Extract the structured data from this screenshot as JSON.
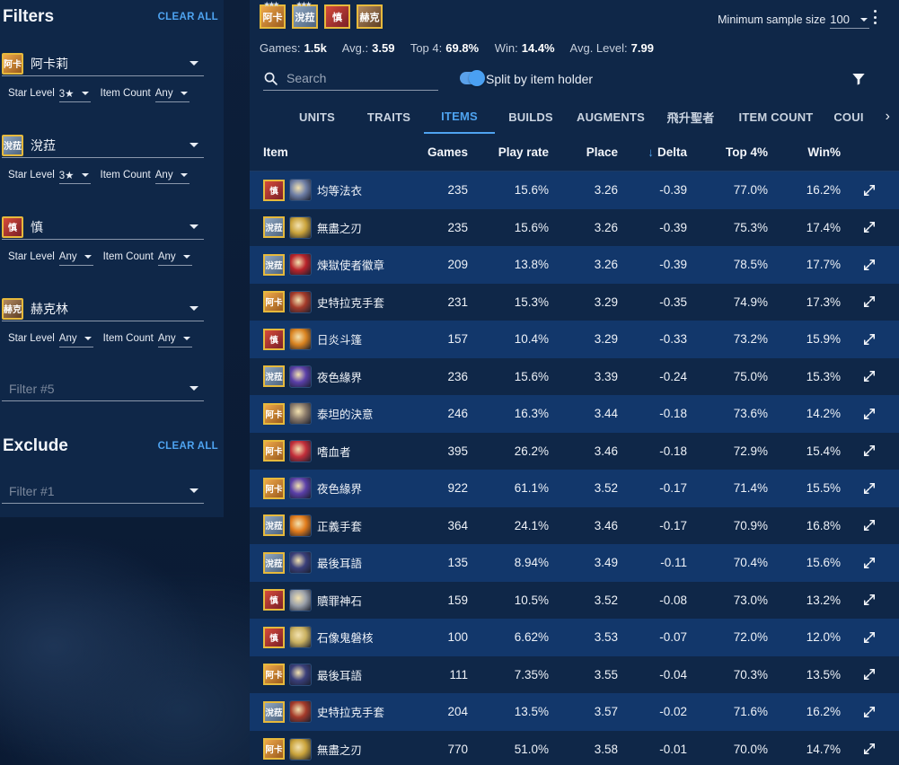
{
  "sidebar": {
    "filters_title": "Filters",
    "clear_all": "CLEAR ALL",
    "filters": [
      {
        "portrait_text": "阿卡",
        "portrait_color": "gold",
        "name": "阿卡莉",
        "star_label": "Star Level",
        "star_value": "3★",
        "count_label": "Item Count",
        "count_value": "Any"
      },
      {
        "portrait_text": "涗菈",
        "portrait_color": "blue",
        "name": "涗菈",
        "star_label": "Star Level",
        "star_value": "3★",
        "count_label": "Item Count",
        "count_value": "Any"
      },
      {
        "portrait_text": "慎",
        "portrait_color": "red",
        "name": "慎",
        "star_label": "Star Level",
        "star_value": "Any",
        "count_label": "Item Count",
        "count_value": "Any"
      },
      {
        "portrait_text": "赫克",
        "portrait_color": "brown",
        "name": "赫克林",
        "star_label": "Star Level",
        "star_value": "Any",
        "count_label": "Item Count",
        "count_value": "Any"
      }
    ],
    "filter5_placeholder": "Filter #5",
    "exclude_title": "Exclude",
    "exclude_clear_all": "CLEAR ALL",
    "exclude_placeholder": "Filter #1"
  },
  "header": {
    "portraits": [
      {
        "text": "阿卡",
        "color": "gold"
      },
      {
        "text": "涗菈",
        "color": "blue"
      },
      {
        "text": "慎",
        "color": "red"
      },
      {
        "text": "赫克",
        "color": "brown"
      }
    ],
    "min_sample_label": "Minimum sample size",
    "min_sample_value": "100",
    "stats": {
      "games_label": "Games:",
      "games": "1.5k",
      "avg_label": "Avg.:",
      "avg": "3.59",
      "top4_label": "Top 4:",
      "top4": "69.8%",
      "win_label": "Win:",
      "win": "14.4%",
      "avg_level_label": "Avg. Level:",
      "avg_level": "7.99"
    },
    "search_placeholder": "Search",
    "split_label": "Split by item holder",
    "split_on": true
  },
  "tabs": [
    "UNITS",
    "TRAITS",
    "ITEMS",
    "BUILDS",
    "AUGMENTS",
    "飛升聖者",
    "ITEM COUNT",
    "COUI"
  ],
  "active_tab": "ITEMS",
  "table": {
    "columns": [
      "Item",
      "Games",
      "Play rate",
      "Place",
      "Delta",
      "Top 4%",
      "Win%"
    ],
    "sorted_column": "Delta",
    "rows": [
      {
        "holder": "慎",
        "holder_color": "red",
        "item_color": "#6f7fa6",
        "item": "均等法衣",
        "games": "235",
        "play": "15.6%",
        "place": "3.26",
        "delta": "-0.39",
        "top4": "77.0%",
        "win": "16.2%"
      },
      {
        "holder": "涗菈",
        "holder_color": "blue",
        "item_color": "#c9a23a",
        "item": "無盡之刃",
        "games": "235",
        "play": "15.6%",
        "place": "3.26",
        "delta": "-0.39",
        "top4": "75.3%",
        "win": "17.4%"
      },
      {
        "holder": "涗菈",
        "holder_color": "blue",
        "item_color": "#b8232a",
        "item": "煉獄使者徽章",
        "games": "209",
        "play": "13.8%",
        "place": "3.26",
        "delta": "-0.39",
        "top4": "78.5%",
        "win": "17.7%"
      },
      {
        "holder": "阿卡",
        "holder_color": "gold",
        "item_color": "#a43a2a",
        "item": "史特拉克手套",
        "games": "231",
        "play": "15.3%",
        "place": "3.29",
        "delta": "-0.35",
        "top4": "74.9%",
        "win": "17.3%"
      },
      {
        "holder": "慎",
        "holder_color": "red",
        "item_color": "#d9821f",
        "item": "日炎斗篷",
        "games": "157",
        "play": "10.4%",
        "place": "3.29",
        "delta": "-0.33",
        "top4": "73.2%",
        "win": "15.9%"
      },
      {
        "holder": "涗菈",
        "holder_color": "blue",
        "item_color": "#5a3fa8",
        "item": "夜色緣界",
        "games": "236",
        "play": "15.6%",
        "place": "3.39",
        "delta": "-0.24",
        "top4": "75.0%",
        "win": "15.3%"
      },
      {
        "holder": "阿卡",
        "holder_color": "gold",
        "item_color": "#8a7a6a",
        "item": "泰坦的決意",
        "games": "246",
        "play": "16.3%",
        "place": "3.44",
        "delta": "-0.18",
        "top4": "73.6%",
        "win": "14.2%"
      },
      {
        "holder": "阿卡",
        "holder_color": "gold",
        "item_color": "#c22e3a",
        "item": "嗜血者",
        "games": "395",
        "play": "26.2%",
        "place": "3.46",
        "delta": "-0.18",
        "top4": "72.9%",
        "win": "15.4%"
      },
      {
        "holder": "阿卡",
        "holder_color": "gold",
        "item_color": "#5a3fa8",
        "item": "夜色緣界",
        "games": "922",
        "play": "61.1%",
        "place": "3.52",
        "delta": "-0.17",
        "top4": "71.4%",
        "win": "15.5%"
      },
      {
        "holder": "涗菈",
        "holder_color": "blue",
        "item_color": "#e07a1a",
        "item": "正義手套",
        "games": "364",
        "play": "24.1%",
        "place": "3.46",
        "delta": "-0.17",
        "top4": "70.9%",
        "win": "16.8%"
      },
      {
        "holder": "涗菈",
        "holder_color": "blue",
        "item_color": "#3a3f7a",
        "item": "最後耳語",
        "games": "135",
        "play": "8.94%",
        "place": "3.49",
        "delta": "-0.11",
        "top4": "70.4%",
        "win": "15.6%"
      },
      {
        "holder": "慎",
        "holder_color": "red",
        "item_color": "#9aa0aa",
        "item": "贖罪神石",
        "games": "159",
        "play": "10.5%",
        "place": "3.52",
        "delta": "-0.08",
        "top4": "73.0%",
        "win": "13.2%"
      },
      {
        "holder": "慎",
        "holder_color": "red",
        "item_color": "#c9b060",
        "item": "石像鬼磐核",
        "games": "100",
        "play": "6.62%",
        "place": "3.53",
        "delta": "-0.07",
        "top4": "72.0%",
        "win": "12.0%"
      },
      {
        "holder": "阿卡",
        "holder_color": "gold",
        "item_color": "#3a3f7a",
        "item": "最後耳語",
        "games": "111",
        "play": "7.35%",
        "place": "3.55",
        "delta": "-0.04",
        "top4": "70.3%",
        "win": "13.5%"
      },
      {
        "holder": "涗菈",
        "holder_color": "blue",
        "item_color": "#a43a2a",
        "item": "史特拉克手套",
        "games": "204",
        "play": "13.5%",
        "place": "3.57",
        "delta": "-0.02",
        "top4": "71.6%",
        "win": "16.2%"
      },
      {
        "holder": "阿卡",
        "holder_color": "gold",
        "item_color": "#c9a23a",
        "item": "無盡之刃",
        "games": "770",
        "play": "51.0%",
        "place": "3.58",
        "delta": "-0.01",
        "top4": "70.0%",
        "win": "14.7%"
      }
    ]
  },
  "colors": {
    "accent": "#4ea3f0",
    "panel": "#0f2748",
    "row_alt": "#12376b",
    "portrait_border": "#e6b93c"
  }
}
